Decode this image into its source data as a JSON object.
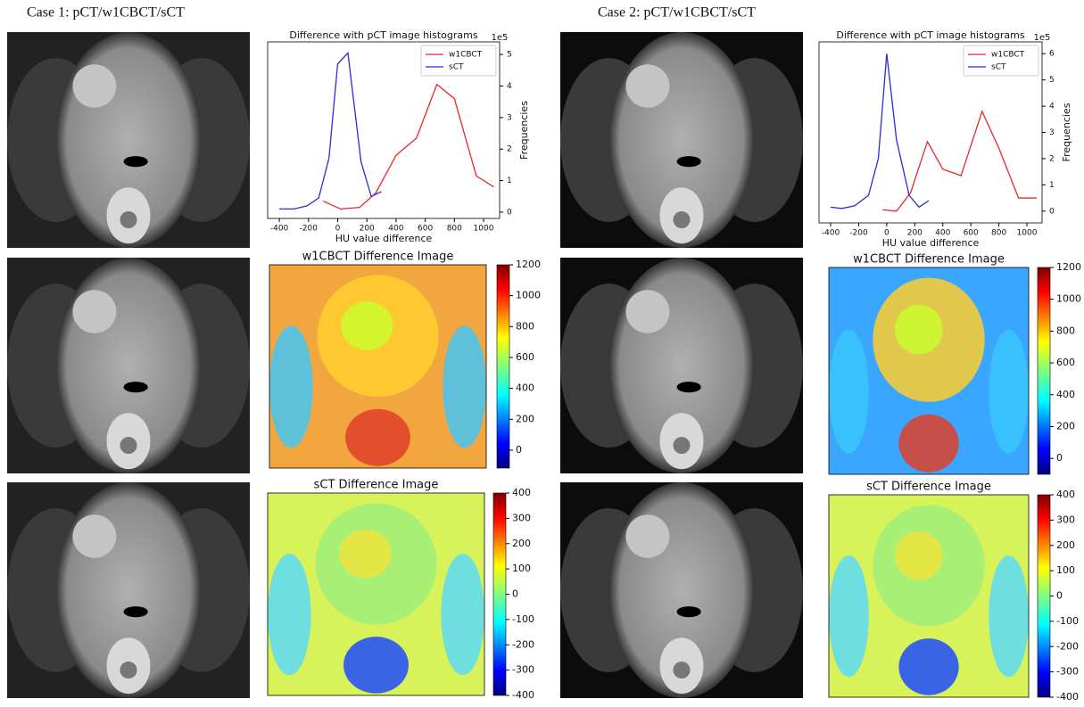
{
  "captions": [
    "Case 1: pCT/w1CBCT/sCT",
    "Case 2: pCT/w1CBCT/sCT"
  ],
  "chart_data": [
    {
      "type": "line",
      "title": "Difference with pCT image histograms",
      "x_label": "HU value difference",
      "y_label": "Frequencies",
      "y_offset_label": "1e5",
      "xlim": [
        -480,
        1110
      ],
      "ylim": [
        -0.2,
        5.4
      ],
      "xticks": [
        -400,
        -200,
        0,
        200,
        400,
        600,
        800,
        1000
      ],
      "yticks": [
        0,
        1,
        2,
        3,
        4,
        5
      ],
      "legend": "upper right",
      "series": [
        {
          "name": "w1CBCT",
          "color": "#e8262a",
          "x": [
            -100,
            20,
            150,
            260,
            400,
            540,
            680,
            800,
            950,
            1070
          ],
          "values": [
            0.35,
            0.1,
            0.15,
            0.6,
            1.8,
            2.35,
            4.05,
            3.6,
            1.15,
            0.8
          ]
        },
        {
          "name": "sCT",
          "color": "#2b2bd6",
          "x": [
            -400,
            -300,
            -210,
            -130,
            -60,
            0,
            70,
            160,
            230,
            300
          ],
          "values": [
            0.1,
            0.1,
            0.2,
            0.45,
            1.7,
            4.7,
            5.05,
            1.6,
            0.5,
            0.65
          ]
        }
      ]
    },
    {
      "type": "line",
      "title": "Difference with pCT image histograms",
      "x_label": "HU value difference",
      "y_label": "Frequencies",
      "y_offset_label": "1e5",
      "xlim": [
        -483,
        1108
      ],
      "ylim": [
        -0.45,
        6.45
      ],
      "xticks": [
        -400,
        -200,
        0,
        200,
        400,
        600,
        800,
        1000
      ],
      "yticks": [
        0,
        1,
        2,
        3,
        4,
        5,
        6
      ],
      "legend": "upper right",
      "series": [
        {
          "name": "w1CBCT",
          "color": "#e8262a",
          "x": [
            -30,
            70,
            170,
            290,
            400,
            530,
            680,
            800,
            940,
            1070
          ],
          "values": [
            0.05,
            0.0,
            0.7,
            2.65,
            1.6,
            1.35,
            3.8,
            2.4,
            0.5,
            0.5
          ]
        },
        {
          "name": "sCT",
          "color": "#2b2bd6",
          "x": [
            -400,
            -320,
            -230,
            -130,
            -60,
            0,
            70,
            160,
            230,
            300
          ],
          "values": [
            0.15,
            0.1,
            0.2,
            0.6,
            2.0,
            6.0,
            2.7,
            0.6,
            0.15,
            0.4
          ]
        }
      ]
    }
  ],
  "heatmaps": [
    {
      "title": "w1CBCT Difference Image",
      "clim": [
        -116,
        1200
      ],
      "colorbar_ticks": [
        0,
        200,
        400,
        600,
        800,
        1000,
        1200
      ]
    },
    {
      "title": "sCT Difference Image",
      "clim": [
        -400,
        400
      ],
      "colorbar_ticks": [
        -400,
        -300,
        -200,
        -100,
        0,
        100,
        200,
        300,
        400
      ]
    },
    {
      "title": "w1CBCT Difference Image",
      "clim": [
        -100,
        1200
      ],
      "colorbar_ticks": [
        0,
        200,
        400,
        600,
        800,
        1000,
        1200
      ]
    },
    {
      "title": "sCT Difference Image",
      "clim": [
        -400,
        400
      ],
      "colorbar_ticks": [
        -400,
        -300,
        -200,
        -100,
        0,
        100,
        200,
        300,
        400
      ]
    }
  ]
}
